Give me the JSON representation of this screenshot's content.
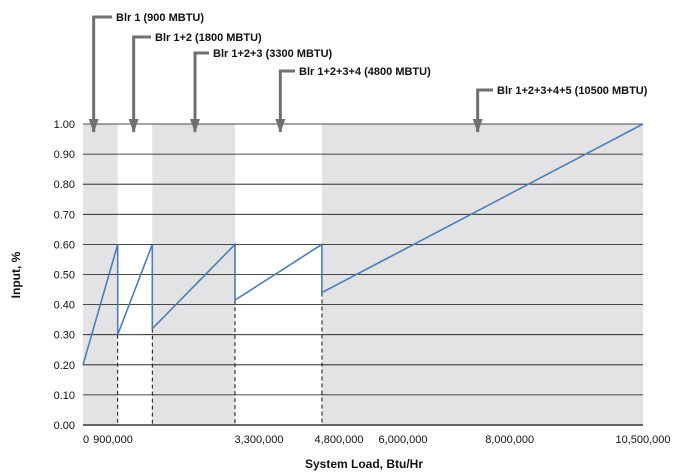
{
  "chart_data": {
    "type": "line",
    "xlabel": "System Load, Btu/Hr",
    "ylabel": "Input, %",
    "xlim": [
      0,
      10500000
    ],
    "ylim": [
      0,
      1.0
    ],
    "x_tick_values": [
      0,
      900000,
      3300000,
      4800000,
      6000000,
      8000000,
      10500000
    ],
    "x_tick_labels": [
      "0",
      "900,000",
      "3,300,000",
      "4,800,000",
      "6,000,000",
      "8,000,000",
      "10,500,000"
    ],
    "y_tick_values": [
      0,
      0.1,
      0.2,
      0.3,
      0.4,
      0.5,
      0.6,
      0.7,
      0.8,
      0.9,
      1.0
    ],
    "y_tick_labels": [
      "0.00",
      "0.10",
      "0.20",
      "0.30",
      "0.40",
      "0.50",
      "0.60",
      "0.70",
      "0.80",
      "0.90",
      "1.00"
    ],
    "grid": "horizontal",
    "series": [
      {
        "color": "#4a7ebb",
        "points": [
          [
            0,
            0.2
          ],
          [
            650000,
            0.6
          ],
          [
            650000,
            0.3
          ],
          [
            1300000,
            0.6
          ],
          [
            1300000,
            0.32
          ],
          [
            2850000,
            0.6
          ],
          [
            2850000,
            0.415
          ],
          [
            4480000,
            0.6
          ],
          [
            4480000,
            0.44
          ],
          [
            10500000,
            1.0
          ]
        ]
      }
    ],
    "stage_bands": [
      {
        "start": 0,
        "end": 650000,
        "shaded": true
      },
      {
        "start": 650000,
        "end": 1300000,
        "shaded": false
      },
      {
        "start": 1300000,
        "end": 2850000,
        "shaded": true
      },
      {
        "start": 2850000,
        "end": 4480000,
        "shaded": false
      },
      {
        "start": 4480000,
        "end": 10500000,
        "shaded": true
      }
    ],
    "staging_lines": [
      {
        "x": 650000,
        "y": 0.3
      },
      {
        "x": 1300000,
        "y": 0.32
      },
      {
        "x": 2850000,
        "y": 0.415
      },
      {
        "x": 4480000,
        "y": 0.44
      }
    ],
    "annotations": [
      {
        "text": "Blr 1 (900 MBTU)",
        "arrow_x": 200000
      },
      {
        "text": "Blr 1+2 (1800 MBTU)",
        "arrow_x": 950000
      },
      {
        "text": "Blr 1+2+3 (3300 MBTU)",
        "arrow_x": 2100000
      },
      {
        "text": "Blr 1+2+3+4 (4800 MBTU)",
        "arrow_x": 3700000
      },
      {
        "text": "Blr 1+2+3+4+5 (10500 MBTU)",
        "arrow_x": 7400000
      }
    ]
  },
  "colors": {
    "band": "#e3e3e6",
    "grid": "#111111",
    "arrow": "#707070",
    "line": "#4a7ebb"
  }
}
